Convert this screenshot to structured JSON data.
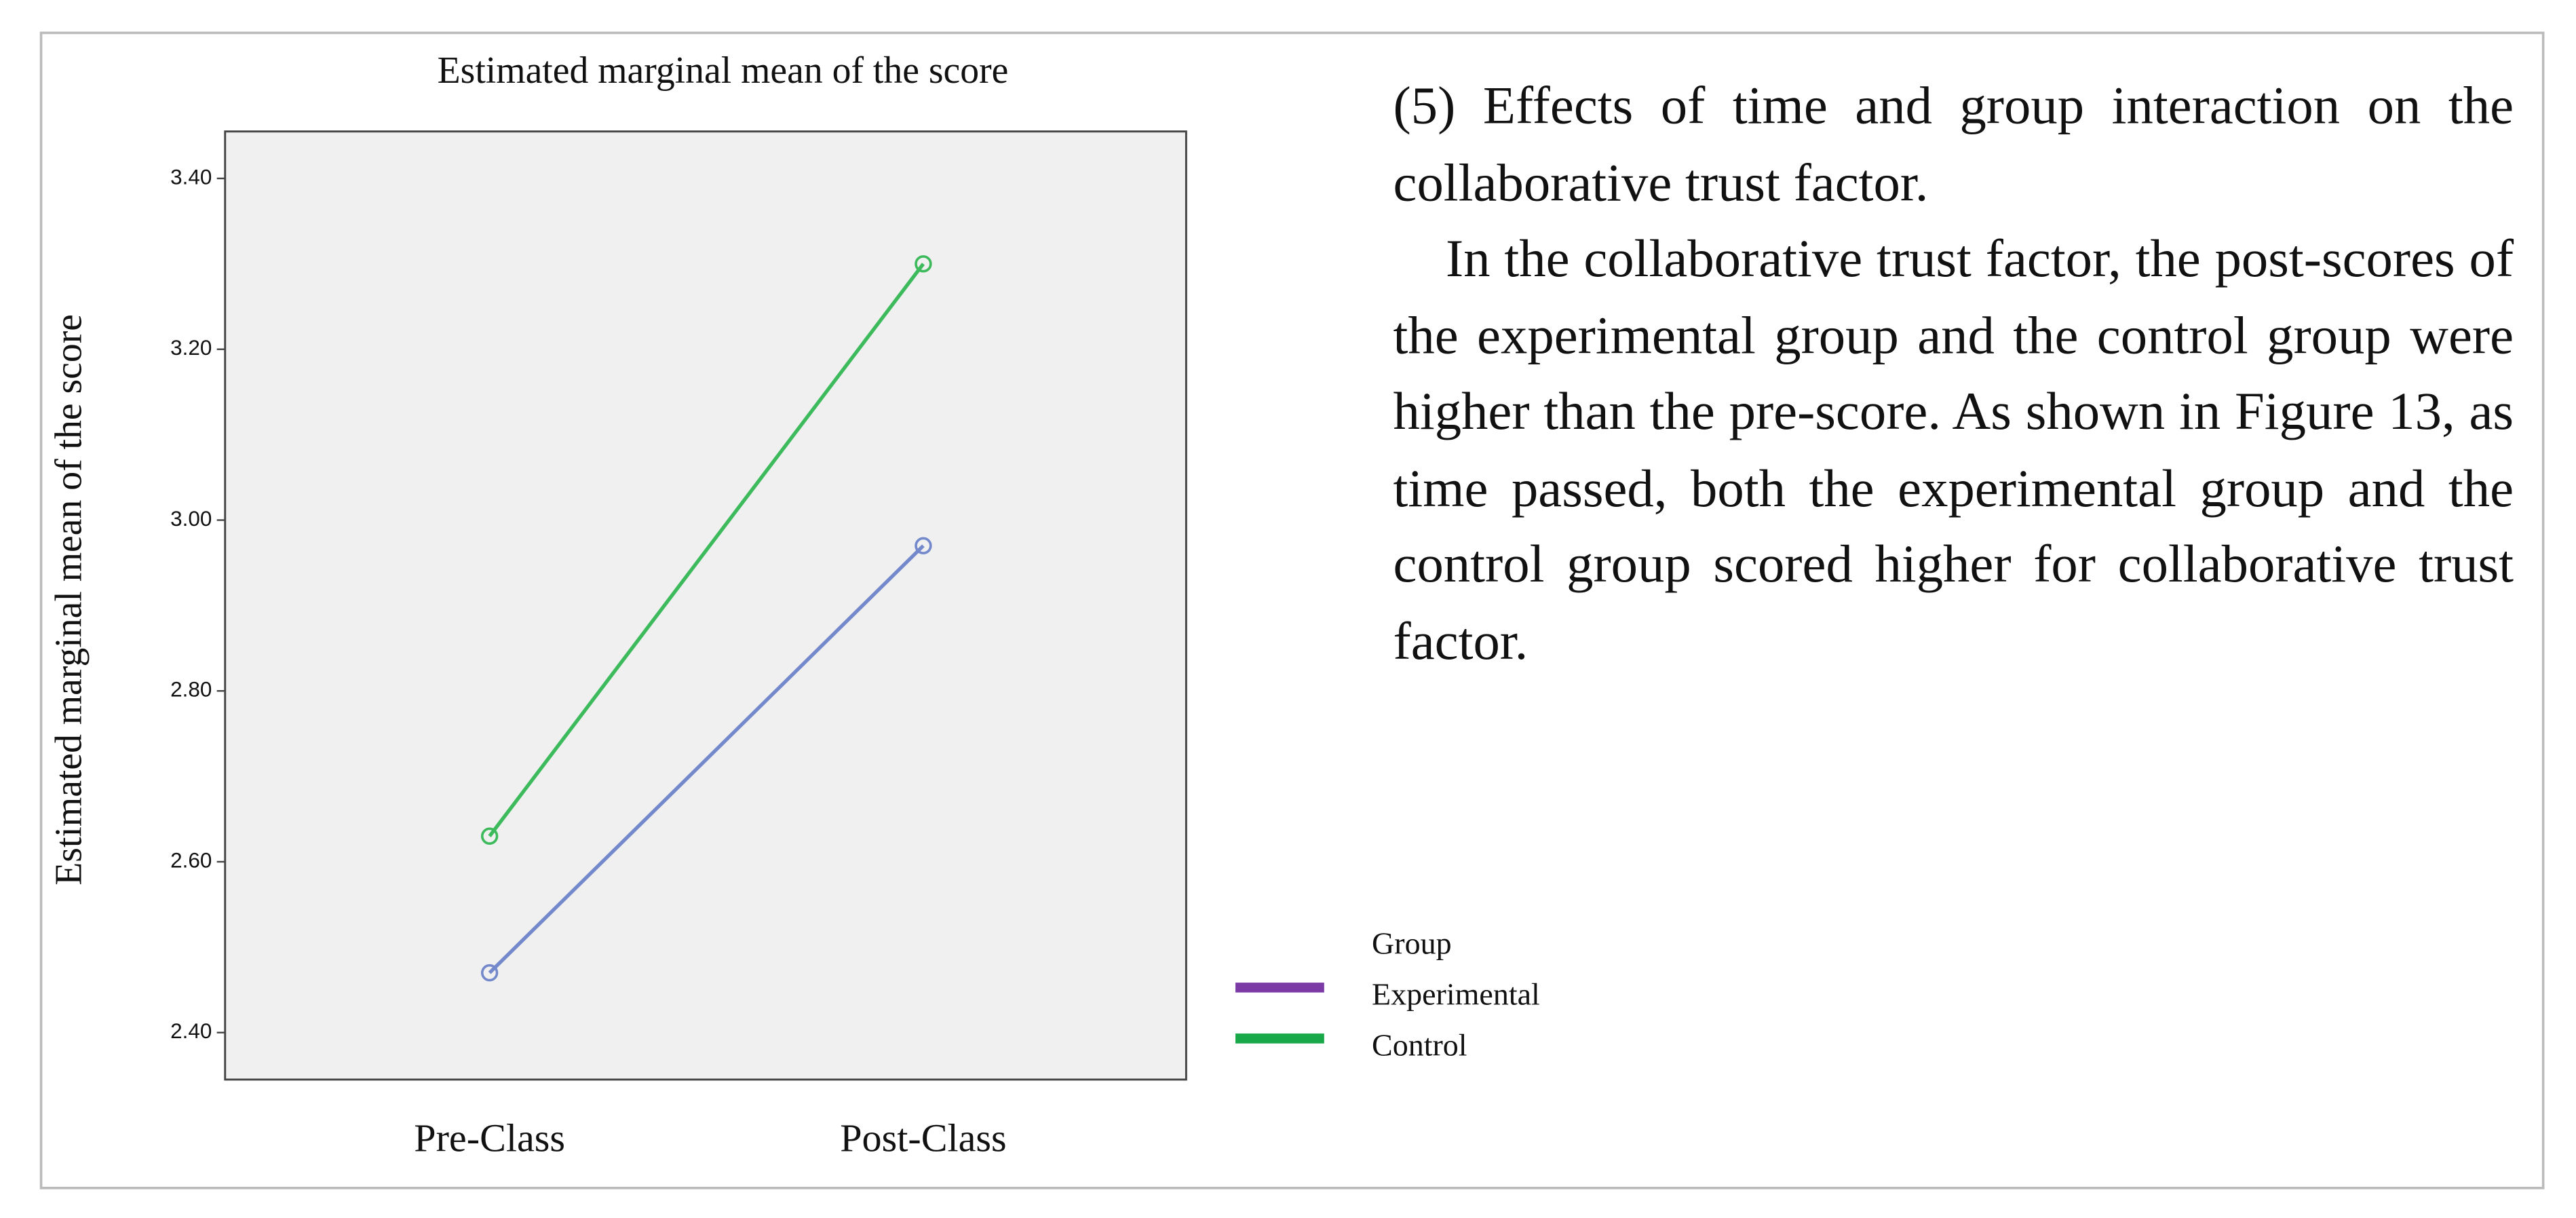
{
  "chart_data": {
    "type": "line",
    "title": "Estimated marginal mean of the score",
    "y_label": "Estimated marginal mean of the score",
    "categories": [
      "Pre-Class",
      "Post-Class"
    ],
    "series": [
      {
        "name": "Experimental",
        "color": "#7489cc",
        "legend_color": "#7b3aa6",
        "values": [
          2.47,
          2.97
        ]
      },
      {
        "name": "Control",
        "color": "#3dbb5c",
        "legend_color": "#18a84a",
        "values": [
          2.63,
          3.3
        ]
      }
    ],
    "legend_title": "Group",
    "ylim": [
      2.345,
      3.455
    ],
    "yticks": [
      {
        "value": 2.4,
        "label": "2.40"
      },
      {
        "value": 2.6,
        "label": "2.60"
      },
      {
        "value": 2.8,
        "label": "2.80"
      },
      {
        "value": 3.0,
        "label": "3.00"
      },
      {
        "value": 3.2,
        "label": "3.20"
      },
      {
        "value": 3.4,
        "label": "3.40"
      }
    ],
    "legend": "right"
  },
  "text": {
    "heading": "(5) Effects of time and group interaction on the collaborative trust factor.",
    "paragraph": "In the collaborative trust factor, the post-scores of the experimental group and the control group were higher than the pre-score. As shown in Figure 13, as time passed, both the experimental group and the control group scored higher for collaborative trust factor."
  }
}
